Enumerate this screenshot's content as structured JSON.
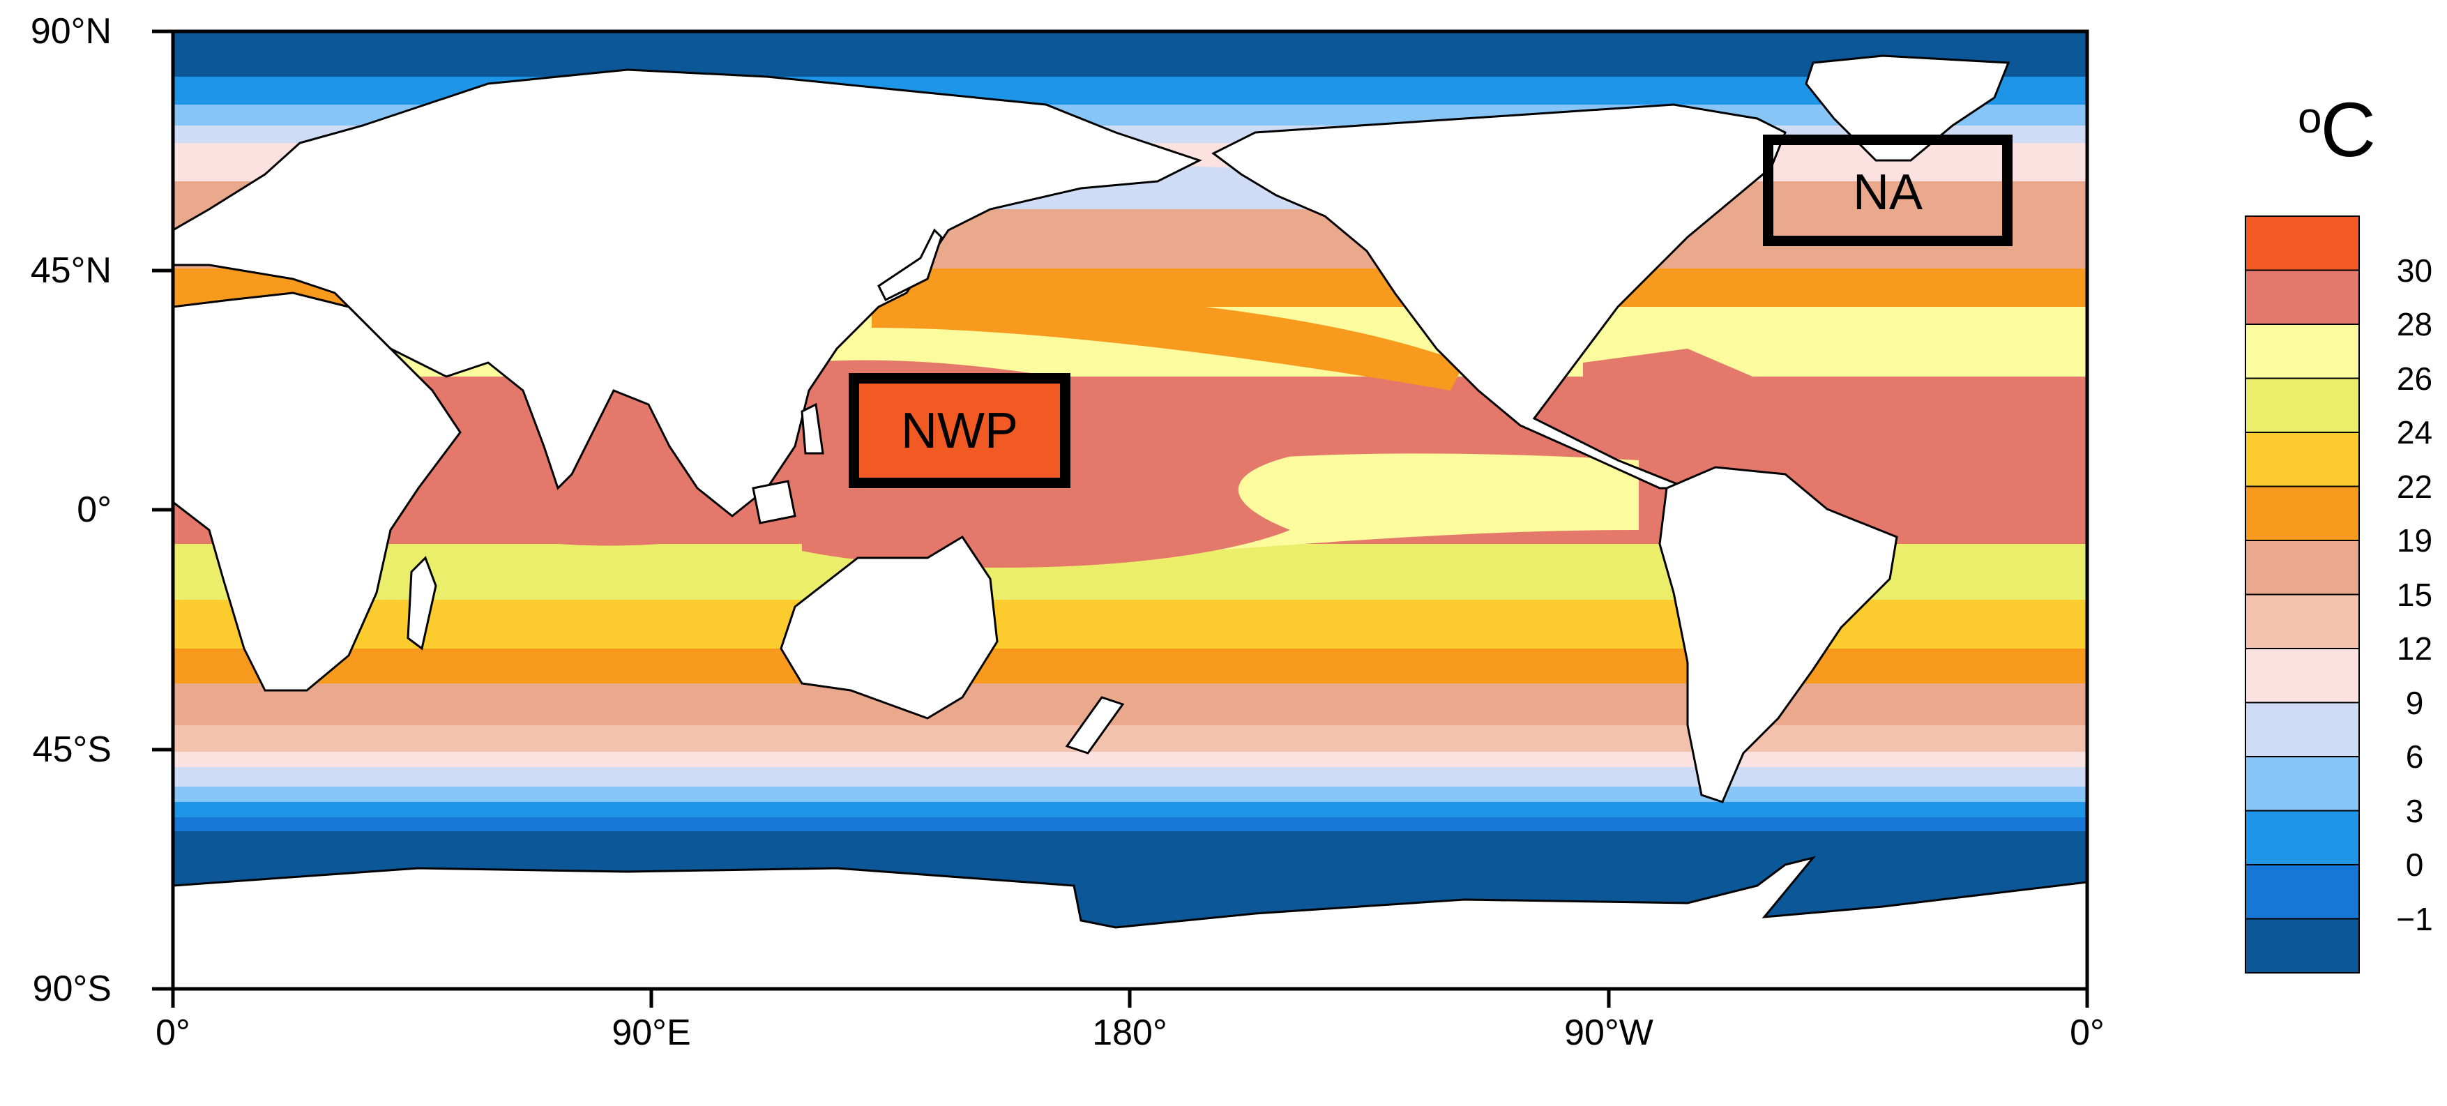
{
  "unit": {
    "degree": "o",
    "letter": "C"
  },
  "lat_labels": [
    "90°N",
    "45°N",
    "0°",
    "45°S",
    "90°S"
  ],
  "lon_labels": [
    "0°",
    "90°E",
    "180°",
    "90°W",
    "0°"
  ],
  "colorbar": {
    "colors": [
      "#0b5797",
      "#1677d6",
      "#1f95e8",
      "#86c5f5",
      "#cfdcf5",
      "#fbe2e0",
      "#f3c2ad",
      "#eaa88c",
      "#f79a1e",
      "#fccb2e",
      "#ebee6a",
      "#fcfb9e",
      "#e4786a",
      "#f25a24"
    ],
    "tick_labels": [
      "−1",
      "0",
      "3",
      "6",
      "9",
      "12",
      "15",
      "19",
      "22",
      "24",
      "26",
      "28",
      "30"
    ]
  },
  "regions": [
    {
      "name": "NWP"
    },
    {
      "name": "NA"
    }
  ]
}
